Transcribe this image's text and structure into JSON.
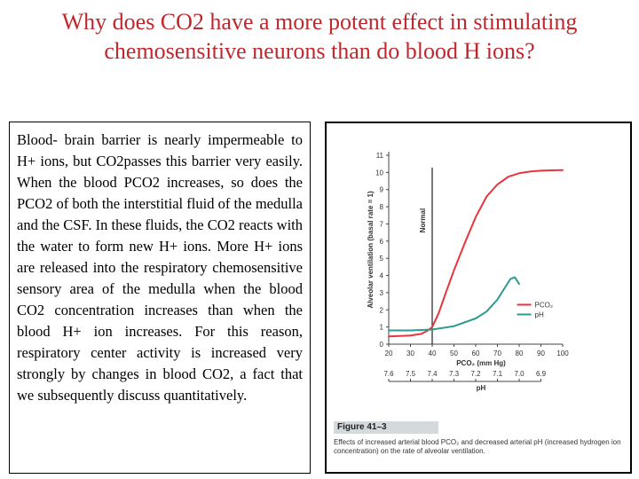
{
  "slide": {
    "title": "Why does CO2 have a more potent effect in stimulating chemosensitive neurons than do blood H ions?",
    "body_text": "Blood- brain barrier is nearly impermeable to H+ ions, but CO2passes this barrier very easily. When the blood PCO2 increases, so does the PCO2 of both the interstitial fluid of the medulla and the CSF. In these fluids, the CO2 reacts with the water to form new H+ ions. More H+ ions are released into the respiratory chemosensitive sensory area of the medulla when the blood CO2 concentration increases than when the blood H+ ion increases. For this reason, respiratory center activity is increased very strongly by changes in blood CO2, a fact that we subsequently discuss quantitatively."
  },
  "figure": {
    "label": "Figure 41–3",
    "caption": "Effects of increased arterial blood PCO₂ and decreased arterial pH (increased hydrogen ion concentration) on the rate of alveolar ventilation."
  },
  "chart_data": {
    "type": "line",
    "ylabel": "Alveolar ventilation (basal rate = 1)",
    "xlabel": "PCO₂ (mm Hg)",
    "x2label": "pH",
    "xlim": [
      20,
      100
    ],
    "ylim": [
      0,
      11
    ],
    "x_ticks": [
      20,
      30,
      40,
      50,
      60,
      70,
      80,
      90,
      100
    ],
    "y_ticks": [
      0,
      1,
      2,
      3,
      4,
      5,
      6,
      7,
      8,
      9,
      10,
      11
    ],
    "ph_ticks": [
      "7.6",
      "7.5",
      "7.4",
      "7.3",
      "7.2",
      "7.1",
      "7.0",
      "6.9"
    ],
    "ph_tick_positions": [
      20,
      30,
      40,
      50,
      60,
      70,
      80,
      90
    ],
    "normal_line": {
      "x": 40,
      "label": "Normal"
    },
    "legend_position": "lower-right",
    "series": [
      {
        "name": "PCO₂",
        "color": "#e8343c",
        "x": [
          20,
          30,
          35,
          38,
          40,
          43,
          46,
          50,
          55,
          60,
          65,
          70,
          75,
          80,
          85,
          90,
          95,
          100
        ],
        "y": [
          0.45,
          0.5,
          0.6,
          0.8,
          1.0,
          1.8,
          2.9,
          4.3,
          5.9,
          7.4,
          8.6,
          9.3,
          9.75,
          9.95,
          10.05,
          10.1,
          10.12,
          10.13
        ]
      },
      {
        "name": "pH",
        "color": "#2a9d8f",
        "x": [
          20,
          30,
          40,
          50,
          60,
          65,
          70,
          73,
          76,
          78,
          80
        ],
        "y": [
          0.8,
          0.8,
          0.85,
          1.05,
          1.5,
          1.9,
          2.6,
          3.2,
          3.8,
          3.9,
          3.5
        ]
      }
    ]
  }
}
